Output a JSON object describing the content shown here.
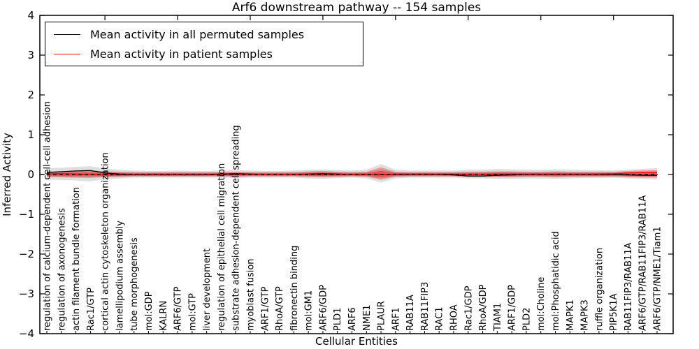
{
  "figure": {
    "title": "Arf6 downstream pathway -- 154 samples",
    "xlabel": "Cellular Entities",
    "ylabel": "Inferred Activity"
  },
  "legend": {
    "entries": [
      {
        "label": "Mean activity in all permuted samples",
        "color": "#000000"
      },
      {
        "label": "Mean activity in patient samples",
        "color": "#ff0000"
      }
    ]
  },
  "chart_data": {
    "type": "line",
    "title": "Arf6 downstream pathway -- 154 samples",
    "xlabel": "Cellular Entities",
    "ylabel": "Inferred Activity",
    "ylim": [
      -4,
      4
    ],
    "yticks": [
      4,
      3,
      2,
      1,
      0,
      -1,
      -2,
      -3,
      -4
    ],
    "ytick_labels": [
      "4",
      "3",
      "2",
      "1",
      "0",
      "−1",
      "−2",
      "−3",
      "−4"
    ],
    "grid": false,
    "legend_position": "upper left",
    "zero_line": {
      "style": "dashed",
      "color": "#000000"
    },
    "categories": [
      "regulation of calcium-dependent cell-cell adhesion",
      "regulation of axonogenesis",
      "actin filament bundle formation",
      "Rac1/GTP",
      "cortical actin cytoskeleton organization",
      "lamellipodium assembly",
      "tube morphogenesis",
      "mol:GDP",
      "KALRN",
      "ARF6/GTP",
      "mol:GTP",
      "liver development",
      "regulation of epithelial cell migration",
      "substrate adhesion-dependent cell spreading",
      "myoblast fusion",
      "ARF1/GTP",
      "RhoA/GTP",
      "fibronectin binding",
      "mol:GM1",
      "ARF6/GDP",
      "PLD1",
      "ARF6",
      "NME1",
      "PLAUR",
      "ARF1",
      "RAB11A",
      "RAB11FIP3",
      "RAC1",
      "RHOA",
      "Rac1/GDP",
      "RhoA/GDP",
      "TIAM1",
      "ARF1/GDP",
      "PLD2",
      "mol:Choline",
      "mol:Phosphatidic acid",
      "MAPK1",
      "MAPK3",
      "ruffle organization",
      "PIP5K1A",
      "RAB11FIP3/RAB11A",
      "ARF6/GTP/RAB11FIP3/RAB11A",
      "ARF6/GTP/NME1/Tiam1"
    ],
    "series": [
      {
        "name": "Mean activity in all permuted samples",
        "color": "#000000",
        "style": "solid",
        "values": [
          0.05,
          0.07,
          0.09,
          0.1,
          0.04,
          0.01,
          0.0,
          0.0,
          0.0,
          0.0,
          0.0,
          0.0,
          0.01,
          0.02,
          0.01,
          0.0,
          0.0,
          0.0,
          0.01,
          0.02,
          0.01,
          0.0,
          0.0,
          0.0,
          0.0,
          0.0,
          0.0,
          0.0,
          -0.01,
          -0.04,
          -0.04,
          -0.02,
          -0.01,
          0.0,
          0.0,
          0.0,
          0.0,
          0.0,
          0.0,
          0.0,
          -0.01,
          -0.02,
          -0.02
        ]
      },
      {
        "name": "Mean activity in patient samples",
        "color": "#ff0000",
        "style": "solid",
        "values": [
          0.02,
          0.02,
          0.01,
          0.0,
          -0.01,
          -0.01,
          -0.01,
          -0.01,
          -0.01,
          -0.01,
          -0.01,
          -0.01,
          0.0,
          0.0,
          0.0,
          0.0,
          0.0,
          0.0,
          0.0,
          0.0,
          0.0,
          0.0,
          0.0,
          0.0,
          0.01,
          0.01,
          0.01,
          0.01,
          0.01,
          0.0,
          0.0,
          0.01,
          0.01,
          0.01,
          0.01,
          0.01,
          0.01,
          0.01,
          0.01,
          0.02,
          0.04,
          0.05,
          0.05
        ]
      }
    ],
    "bands": [
      {
        "name": "permuted-samples-range",
        "color": "#8c8c8c",
        "opacity": 0.28,
        "hi": [
          0.16,
          0.17,
          0.19,
          0.21,
          0.15,
          0.12,
          0.1,
          0.09,
          0.09,
          0.1,
          0.09,
          0.09,
          0.1,
          0.11,
          0.1,
          0.09,
          0.09,
          0.1,
          0.12,
          0.13,
          0.11,
          0.1,
          0.12,
          0.26,
          0.12,
          0.1,
          0.1,
          0.1,
          0.1,
          0.12,
          0.12,
          0.14,
          0.13,
          0.12,
          0.12,
          0.13,
          0.12,
          0.11,
          0.11,
          0.1,
          0.12,
          0.14,
          0.16
        ],
        "lo": [
          -0.13,
          -0.14,
          -0.15,
          -0.17,
          -0.12,
          -0.1,
          -0.08,
          -0.08,
          -0.08,
          -0.08,
          -0.08,
          -0.08,
          -0.08,
          -0.09,
          -0.08,
          -0.08,
          -0.08,
          -0.08,
          -0.1,
          -0.11,
          -0.09,
          -0.08,
          -0.1,
          -0.2,
          -0.1,
          -0.08,
          -0.08,
          -0.08,
          -0.08,
          -0.1,
          -0.1,
          -0.11,
          -0.11,
          -0.1,
          -0.1,
          -0.11,
          -0.1,
          -0.09,
          -0.09,
          -0.08,
          -0.1,
          -0.11,
          -0.13
        ]
      },
      {
        "name": "patient-samples-range",
        "color": "#ff0000",
        "opacity": 0.3,
        "hi": [
          0.07,
          0.08,
          0.09,
          0.1,
          0.08,
          0.07,
          0.06,
          0.06,
          0.06,
          0.06,
          0.06,
          0.06,
          0.06,
          0.07,
          0.06,
          0.06,
          0.06,
          0.06,
          0.08,
          0.09,
          0.07,
          0.06,
          0.07,
          0.18,
          0.07,
          0.06,
          0.06,
          0.06,
          0.06,
          0.07,
          0.07,
          0.08,
          0.08,
          0.07,
          0.07,
          0.08,
          0.07,
          0.07,
          0.07,
          0.07,
          0.09,
          0.1,
          0.11
        ],
        "lo": [
          -0.06,
          -0.07,
          -0.08,
          -0.08,
          -0.07,
          -0.06,
          -0.05,
          -0.05,
          -0.05,
          -0.05,
          -0.05,
          -0.05,
          -0.05,
          -0.06,
          -0.05,
          -0.05,
          -0.05,
          -0.05,
          -0.06,
          -0.07,
          -0.06,
          -0.05,
          -0.06,
          -0.13,
          -0.06,
          -0.05,
          -0.05,
          -0.05,
          -0.05,
          -0.06,
          -0.06,
          -0.07,
          -0.07,
          -0.06,
          -0.06,
          -0.07,
          -0.06,
          -0.06,
          -0.06,
          -0.06,
          -0.07,
          -0.08,
          -0.08
        ]
      }
    ]
  }
}
